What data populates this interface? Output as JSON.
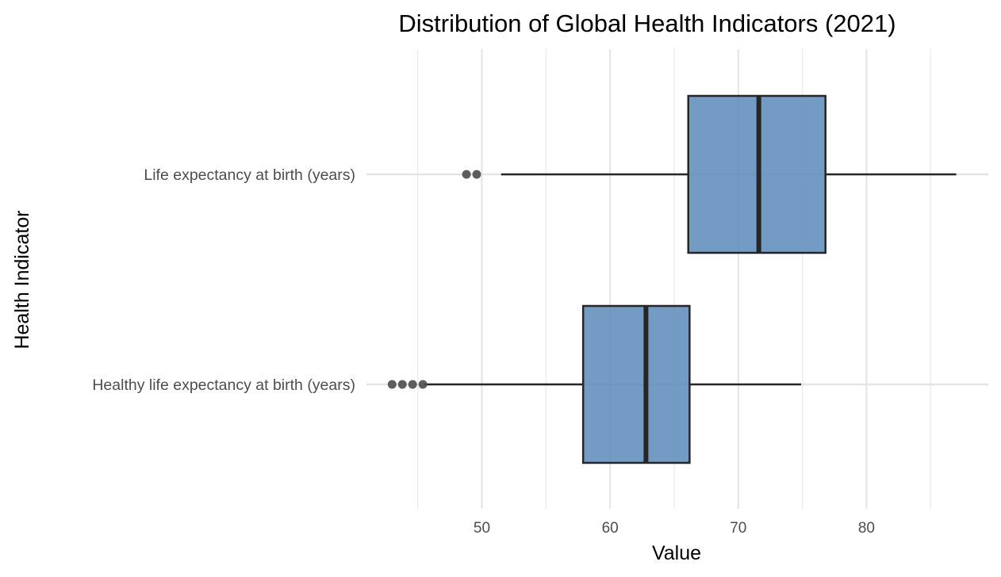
{
  "chart_data": {
    "type": "boxplot",
    "orientation": "horizontal",
    "title": "Distribution of Global Health Indicators (2021)",
    "xlabel": "Value",
    "ylabel": "Health Indicator",
    "xlim": [
      41,
      89.5
    ],
    "x_ticks": [
      50,
      60,
      70,
      80
    ],
    "x_tick_labels": [
      "50",
      "60",
      "70",
      "80"
    ],
    "grid": true,
    "legend": "none",
    "box_fill": "#5b89b9",
    "box_stroke": "#262626",
    "outlier_color": "#4d4d4d",
    "categories": [
      "Life expectancy at birth (years)",
      "Healthy life expectancy at birth (years)"
    ],
    "boxes": [
      {
        "category": "Life expectancy at birth (years)",
        "whisker_low": 51.5,
        "q1": 66.1,
        "median": 71.6,
        "q3": 76.8,
        "whisker_high": 87.0,
        "outliers": [
          48.8,
          49.6
        ]
      },
      {
        "category": "Healthy life expectancy at birth (years)",
        "whisker_low": 45.5,
        "q1": 57.9,
        "median": 62.8,
        "q3": 66.2,
        "whisker_high": 74.9,
        "outliers": [
          43.0,
          43.8,
          44.6,
          45.4
        ]
      }
    ]
  }
}
